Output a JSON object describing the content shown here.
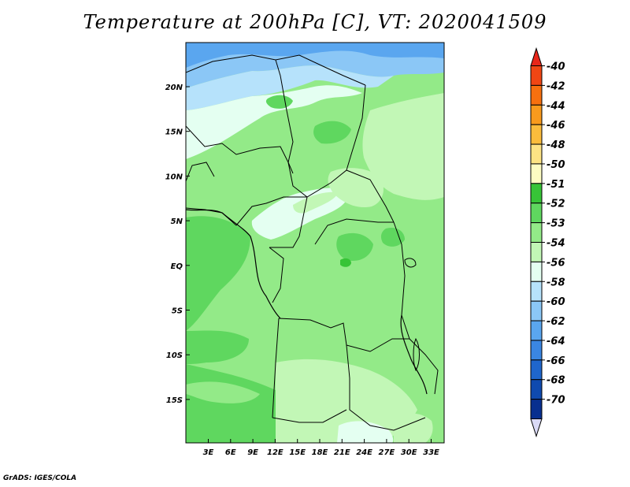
{
  "title": "Temperature at 200hPa [C], VT: 2020041509",
  "credit": "GrADS: IGES/COLA",
  "map": {
    "lat_ticks": [
      "20N",
      "15N",
      "10N",
      "5N",
      "EQ",
      "5S",
      "10S",
      "15S"
    ],
    "lon_ticks": [
      "3E",
      "6E",
      "9E",
      "12E",
      "15E",
      "18E",
      "21E",
      "24E",
      "27E",
      "30E",
      "33E"
    ]
  },
  "colorbar": {
    "labels": [
      "-40",
      "-42",
      "-44",
      "-46",
      "-48",
      "-50",
      "-51",
      "-52",
      "-53",
      "-54",
      "-56",
      "-58",
      "-60",
      "-62",
      "-64",
      "-66",
      "-68",
      "-70"
    ],
    "colors": [
      "#e8261a",
      "#f04614",
      "#f7700f",
      "#f99a1d",
      "#fbbc3c",
      "#fde384",
      "#fdfcc2",
      "#37c437",
      "#5fd75f",
      "#93ea88",
      "#c2f7b6",
      "#e4fff1",
      "#b6e2fb",
      "#8bc7f6",
      "#5aa6ef",
      "#3a86e2",
      "#1f66cc",
      "#0f4aaf",
      "#082f8f",
      "#031761"
    ],
    "under_color": "#d9d9f5"
  }
}
